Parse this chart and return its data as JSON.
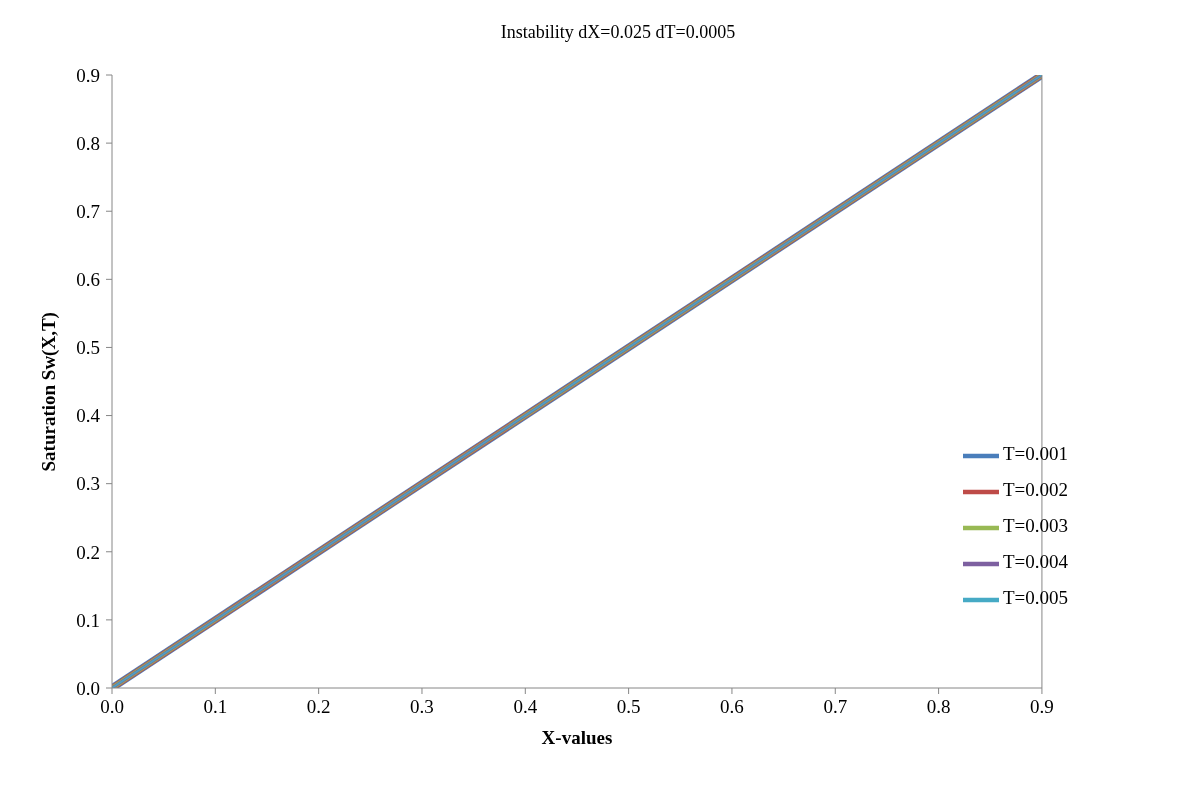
{
  "chart_data": {
    "type": "line",
    "title": "Instability dX=0.025 dT=0.0005",
    "xlabel": "X-values",
    "ylabel": "Saturation Sw(X,T)",
    "x": [
      0,
      0.45,
      0.9
    ],
    "series": [
      {
        "name": "T=0.001",
        "color": "#4a7ebb",
        "values": [
          0,
          0.45,
          0.9
        ]
      },
      {
        "name": "T=0.002",
        "color": "#be4b48",
        "values": [
          0,
          0.45,
          0.9
        ]
      },
      {
        "name": "T=0.003",
        "color": "#98b954",
        "values": [
          0,
          0.45,
          0.9
        ]
      },
      {
        "name": "T=0.004",
        "color": "#7d60a0",
        "values": [
          0,
          0.45,
          0.9
        ]
      },
      {
        "name": "T=0.005",
        "color": "#46aac5",
        "values": [
          0,
          0.45,
          0.9
        ]
      }
    ],
    "xlim": [
      0,
      0.9
    ],
    "xticks": [
      {
        "value": 0,
        "label": "0.0"
      },
      0.1,
      0.2,
      0.3,
      0.4,
      0.5,
      0.6,
      0.7,
      0.8,
      0.9
    ],
    "ylim": [
      0,
      0.9
    ],
    "yticks": [
      {
        "value": 0,
        "label": "0.0"
      },
      0.1,
      0.2,
      0.3,
      0.4,
      0.5,
      0.6,
      0.7,
      0.8,
      0.9
    ],
    "grid": false,
    "legend": "right",
    "marker": "none",
    "line_style": "solid"
  }
}
